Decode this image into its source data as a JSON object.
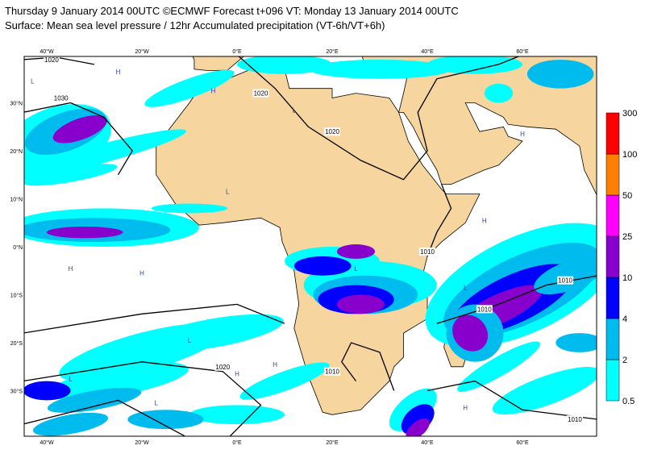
{
  "header": {
    "lines": [
      "Thursday 9 January 2014 00UTC ©ECMWF Forecast t+096 VT: Monday 13 January 2014 00UTC",
      "Surface: Mean sea level pressure / 12hr Accumulated precipitation (VT-6h/VT+6h)"
    ]
  },
  "map": {
    "lon_labels": [
      "40°W",
      "20°W",
      "0°E",
      "20°E",
      "40°E",
      "60°E"
    ],
    "lat_labels": [
      "30°N",
      "20°N",
      "10°N",
      "0°N",
      "10°S",
      "20°S",
      "30°S"
    ],
    "isobar_labels": [
      "1030",
      "1020",
      "1020",
      "1020",
      "1010",
      "1010",
      "1010",
      "1020",
      "1010",
      "1010"
    ],
    "centers": [
      "H",
      "L",
      "H",
      "L",
      "L",
      "H",
      "L",
      "H",
      "L",
      "H",
      "L",
      "H",
      "H",
      "L",
      "H",
      "L",
      "H"
    ]
  },
  "legend": {
    "levels": [
      0.5,
      2,
      4,
      10,
      25,
      50,
      100,
      300
    ],
    "colors": [
      "#00ffff",
      "#00bbee",
      "#0000ff",
      "#8800cc",
      "#ff00ff",
      "#ff8000",
      "#ff0000"
    ]
  }
}
